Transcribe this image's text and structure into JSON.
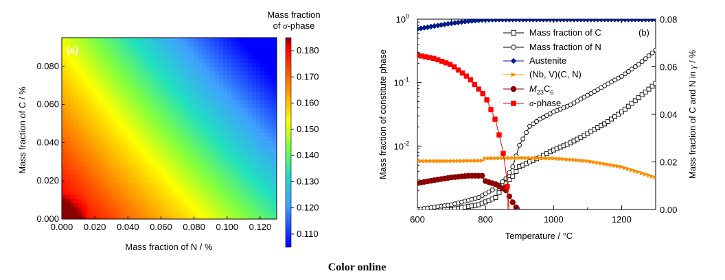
{
  "caption": "Color online",
  "chart_data": [
    {
      "type": "heatmap",
      "panel_label": "(a)",
      "xlabel": "Mass fraction of N / %",
      "ylabel": "Mass fraction of C / %",
      "xlim": [
        0,
        0.13
      ],
      "ylim": [
        0,
        0.095
      ],
      "xticks": [
        "0.000",
        "0.020",
        "0.040",
        "0.060",
        "0.080",
        "0.100",
        "0.120"
      ],
      "yticks": [
        "0.000",
        "0.020",
        "0.040",
        "0.060",
        "0.080"
      ],
      "colorbar": {
        "title_line1": "Mass fraction",
        "title_line2_prefix": "of ",
        "title_line2_symbol": "σ",
        "title_line2_suffix": "-phase",
        "range": [
          0.105,
          0.185
        ],
        "ticks": [
          "0.180",
          "0.170",
          "0.160",
          "0.150",
          "0.140",
          "0.130",
          "0.120",
          "0.110"
        ]
      },
      "surface_note_values": {
        "min_corner_value": 0.184,
        "max_corner_value": 0.106
      }
    },
    {
      "type": "line",
      "panel_label": "(b)",
      "xlabel_main": "Temperature / ",
      "xlabel_unit": "°C",
      "ylabel_left": "Mass fraction of constitute phase",
      "ylabel_right_a": "Mass fraction of C and N in ",
      "ylabel_right_sym": "γ",
      "ylabel_right_b": " / %",
      "xlim": [
        600,
        1300
      ],
      "ylim_left_log": [
        0.001,
        1
      ],
      "ylim_right": [
        0,
        0.08
      ],
      "xticks": [
        "600",
        "800",
        "1000",
        "1200"
      ],
      "yticks_right": [
        "0.00",
        "0.02",
        "0.04",
        "0.06",
        "0.08"
      ],
      "legend_position": "top-right",
      "series": [
        {
          "name": "Mass fraction of C",
          "axis": "right",
          "marker": "square-open",
          "color": "#000000",
          "x": [
            600,
            700,
            780,
            830,
            860,
            880,
            900,
            930,
            960,
            1000,
            1050,
            1100,
            1150,
            1200,
            1250,
            1300
          ],
          "y": [
            0.0,
            0.0,
            0.002,
            0.005,
            0.011,
            0.014,
            0.018,
            0.02,
            0.022,
            0.025,
            0.028,
            0.032,
            0.036,
            0.041,
            0.047,
            0.053
          ]
        },
        {
          "name": "Mass fraction of N",
          "axis": "right",
          "marker": "circle-open",
          "color": "#000000",
          "x": [
            600,
            700,
            780,
            830,
            860,
            880,
            900,
            930,
            960,
            1000,
            1050,
            1100,
            1150,
            1200,
            1250,
            1300
          ],
          "y": [
            0.0,
            0.002,
            0.005,
            0.009,
            0.013,
            0.018,
            0.027,
            0.035,
            0.038,
            0.041,
            0.044,
            0.048,
            0.052,
            0.056,
            0.061,
            0.067
          ]
        },
        {
          "name": "Austenite",
          "axis": "left",
          "marker": "diamond-filled",
          "color": "#001a8c",
          "x": [
            600,
            650,
            700,
            750,
            800,
            900,
            1000,
            1100,
            1200,
            1300
          ],
          "y": [
            0.7,
            0.78,
            0.86,
            0.93,
            0.98,
            0.99,
            0.99,
            0.99,
            0.99,
            0.99
          ]
        },
        {
          "name_a": "(Nb, V)(C, N)",
          "axis": "left",
          "marker": "triangle-right-filled",
          "color": "#ff8c00",
          "x": [
            600,
            700,
            790,
            800,
            900,
            1000,
            1100,
            1200,
            1250,
            1300
          ],
          "y": [
            0.0058,
            0.0058,
            0.0059,
            0.0064,
            0.0065,
            0.0064,
            0.0058,
            0.0047,
            0.0039,
            0.0032
          ]
        },
        {
          "name_prefix": "M",
          "name_sub1": "23",
          "name_mid": "C",
          "name_sub2": "6",
          "axis": "left",
          "marker": "circle-filled",
          "color": "#8b0000",
          "x": [
            600,
            650,
            700,
            750,
            790,
            800,
            830,
            860,
            880,
            900
          ],
          "y": [
            0.0026,
            0.0029,
            0.0032,
            0.0034,
            0.0034,
            0.0028,
            0.0025,
            0.002,
            0.0013,
            0.0009
          ]
        },
        {
          "name_sym": "σ",
          "name_suffix": "-phase",
          "axis": "left",
          "marker": "square-filled",
          "color": "#ff0000",
          "x": [
            600,
            650,
            700,
            750,
            800,
            830,
            850,
            860,
            865,
            870
          ],
          "y": [
            0.27,
            0.24,
            0.19,
            0.12,
            0.06,
            0.025,
            0.009,
            0.004,
            0.002,
            0.0009
          ]
        }
      ]
    }
  ]
}
